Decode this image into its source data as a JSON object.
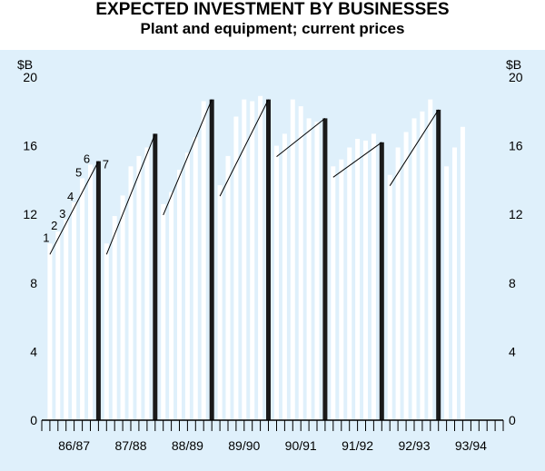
{
  "chart_data": {
    "type": "bar",
    "title": "EXPECTED INVESTMENT BY BUSINESSES",
    "subtitle": "Plant and equipment; current prices",
    "ylabel_left": "$B",
    "ylabel_right": "$B",
    "ylim": [
      0,
      20
    ],
    "yticks": [
      "0",
      "4",
      "8",
      "12",
      "16",
      "20"
    ],
    "grid": false,
    "colors": {
      "plot_background": "#dff0fb",
      "expectation_bar": "#ffffff",
      "actual_bar": "#1a1a1a",
      "trend_line": "#000000"
    },
    "categories": [
      "86/87",
      "87/88",
      "88/89",
      "89/90",
      "90/91",
      "91/92",
      "92/93",
      "93/94"
    ],
    "series": [
      {
        "category": "86/87",
        "expectations": [
          10.3,
          11.0,
          11.7,
          12.7,
          14.1,
          14.9
        ],
        "actual": 15.1
      },
      {
        "category": "87/88",
        "expectations": [
          10.3,
          11.9,
          13.1,
          14.8,
          15.4,
          15.9
        ],
        "actual": 16.7
      },
      {
        "category": "88/89",
        "expectations": [
          12.6,
          13.3,
          14.6,
          15.6,
          16.5,
          18.6
        ],
        "actual": 18.7
      },
      {
        "category": "89/90",
        "expectations": [
          13.7,
          15.4,
          17.7,
          18.7,
          18.6,
          18.9
        ],
        "actual": 18.7
      },
      {
        "category": "90/91",
        "expectations": [
          16.0,
          16.7,
          18.7,
          18.3,
          17.6,
          17.4
        ],
        "actual": 17.6
      },
      {
        "category": "91/92",
        "expectations": [
          14.8,
          15.2,
          15.9,
          16.4,
          16.3,
          16.7
        ],
        "actual": 16.2
      },
      {
        "category": "92/93",
        "expectations": [
          14.3,
          15.9,
          16.8,
          17.6,
          18.0,
          18.7
        ],
        "actual": 18.1
      },
      {
        "category": "93/94",
        "expectations": [
          14.8,
          15.9,
          17.1
        ],
        "actual": null
      }
    ],
    "annotations": [
      "1",
      "2",
      "3",
      "4",
      "5",
      "6",
      "7"
    ]
  }
}
